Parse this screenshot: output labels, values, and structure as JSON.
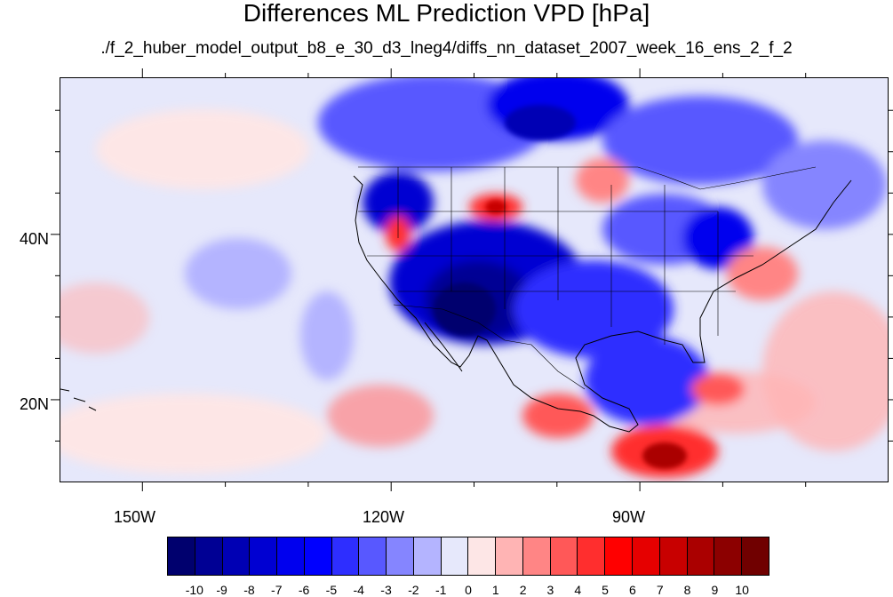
{
  "title": "Differences ML Prediction VPD [hPa]",
  "subtitle": "./f_2_huber_model_output_b8_e_30_d3_lneg4/diffs_nn_dataset_2007_week_16_ens_2_f_2",
  "axes": {
    "lat_labels": [
      "40N",
      "20N"
    ],
    "lon_labels": [
      "150W",
      "120W",
      "90W"
    ]
  },
  "colorbar": {
    "levels": [
      "-10",
      "-9",
      "-8",
      "-7",
      "-6",
      "-5",
      "-4",
      "-3",
      "-2",
      "-1",
      "0",
      "1",
      "2",
      "3",
      "4",
      "5",
      "6",
      "7",
      "8",
      "9",
      "10"
    ],
    "colors": [
      "#00006e",
      "#000094",
      "#0000b4",
      "#0000d2",
      "#0000ee",
      "#0000ff",
      "#2e2eff",
      "#5858ff",
      "#8585ff",
      "#b4b4ff",
      "#e6e8fb",
      "#fde6e6",
      "#ffb4b4",
      "#ff8585",
      "#ff5858",
      "#ff2e2e",
      "#ff0000",
      "#e60000",
      "#c80000",
      "#aa0000",
      "#8c0000",
      "#700000"
    ]
  },
  "chart_data": {
    "type": "heatmap",
    "variable": "Differences ML Prediction VPD",
    "units": "hPa",
    "lat_range": [
      10,
      59
    ],
    "lon_range": [
      -160,
      -60
    ],
    "value_range": [
      -10,
      10
    ]
  }
}
